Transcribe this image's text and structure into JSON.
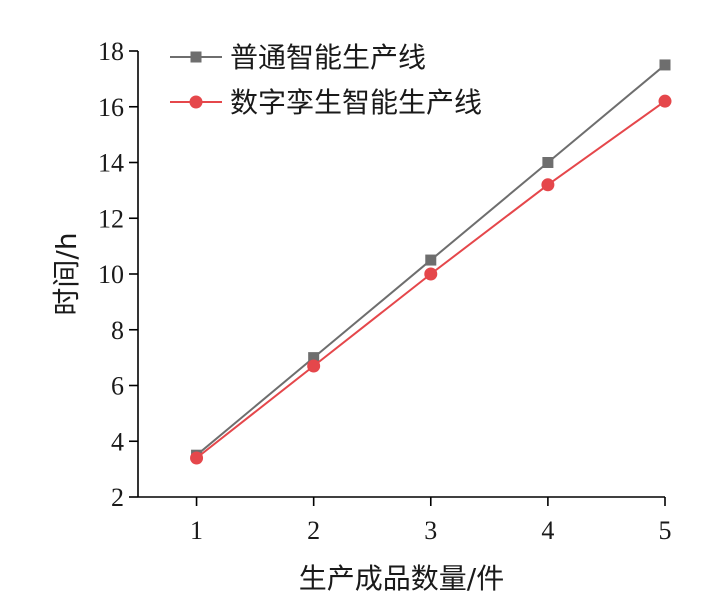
{
  "chart_data": {
    "type": "line",
    "title": "",
    "xlabel": "生产成品数量/件",
    "ylabel": "时间/h",
    "x": [
      1,
      2,
      3,
      4,
      5
    ],
    "xlim": [
      0.5,
      5
    ],
    "ylim": [
      2,
      18
    ],
    "xticks": [
      1,
      2,
      3,
      4,
      5
    ],
    "yticks": [
      2,
      4,
      6,
      8,
      10,
      12,
      14,
      16,
      18
    ],
    "grid": false,
    "legend_position": "top-left",
    "series": [
      {
        "name": "普通智能生产线",
        "values": [
          3.5,
          7.0,
          10.5,
          14.0,
          17.5
        ],
        "color": "#6e6e6e",
        "marker": "square"
      },
      {
        "name": "数字孪生智能生产线",
        "values": [
          3.4,
          6.7,
          10.0,
          13.2,
          16.2
        ],
        "color": "#e5474b",
        "marker": "circle"
      }
    ]
  }
}
